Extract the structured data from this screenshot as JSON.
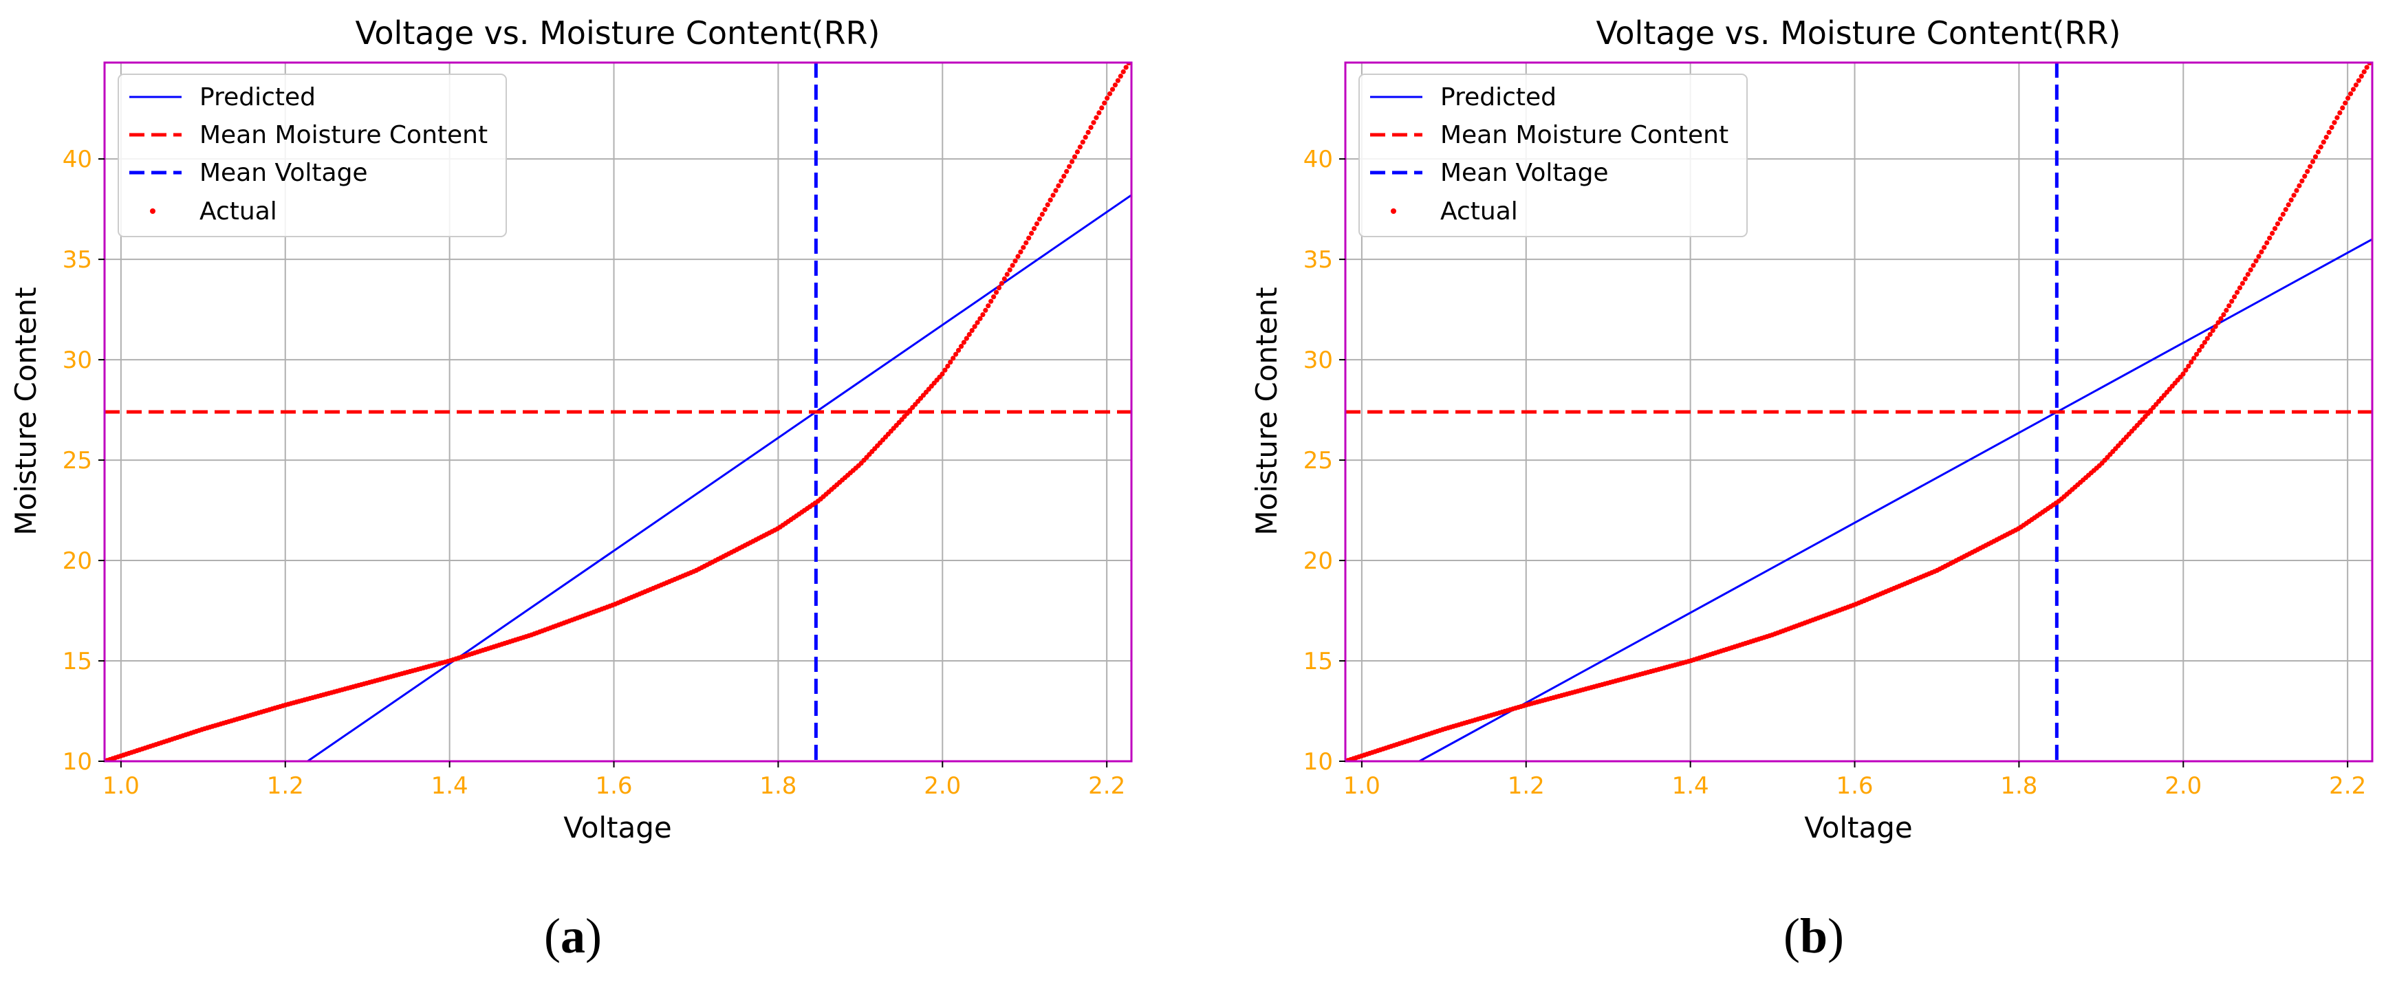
{
  "charts": [
    {
      "caption_letter": "a",
      "caption_open": "(",
      "caption_close": ")",
      "chart_data": {
        "type": "line",
        "title": "Voltage vs. Moisture Content(RR)",
        "xlabel": "Voltage",
        "ylabel": "Moisture Content",
        "xlim": [
          0.98,
          2.23
        ],
        "ylim": [
          10,
          44.8
        ],
        "xticks": [
          1.0,
          1.2,
          1.4,
          1.6,
          1.8,
          2.0,
          2.2
        ],
        "xtick_labels": [
          "1.0",
          "1.2",
          "1.4",
          "1.6",
          "1.8",
          "2.0",
          "2.2"
        ],
        "yticks": [
          10,
          15,
          20,
          25,
          30,
          35,
          40
        ],
        "ytick_labels": [
          "10",
          "15",
          "20",
          "25",
          "30",
          "35",
          "40"
        ],
        "grid": true,
        "legend_position": "top-left",
        "legend": [
          "Predicted",
          "Mean Moisture Content",
          "Mean Voltage",
          "Actual"
        ],
        "series": [
          {
            "name": "Predicted",
            "style": "solid-line",
            "color": "#0000ff",
            "x": [
              1.22,
              2.23
            ],
            "y": [
              9.8,
              38.2
            ]
          },
          {
            "name": "Mean Moisture Content",
            "style": "dashed-hline",
            "color": "#ff0000",
            "y": 27.4
          },
          {
            "name": "Mean Voltage",
            "style": "dashed-vline",
            "color": "#0000ff",
            "x": 1.846
          },
          {
            "name": "Actual",
            "style": "points",
            "color": "#ff0000",
            "x": [
              0.98,
              1.1,
              1.2,
              1.3,
              1.4,
              1.5,
              1.6,
              1.7,
              1.8,
              1.85,
              1.9,
              1.95,
              2.0,
              2.05,
              2.1,
              2.15,
              2.2,
              2.23
            ],
            "y": [
              10.0,
              11.6,
              12.8,
              13.9,
              15.0,
              16.3,
              17.8,
              19.5,
              21.6,
              23.0,
              24.8,
              27.0,
              29.3,
              32.3,
              35.7,
              39.3,
              43.0,
              45.0
            ]
          }
        ]
      }
    },
    {
      "caption_letter": "b",
      "caption_open": "(",
      "caption_close": ")",
      "chart_data": {
        "type": "line",
        "title": "Voltage vs. Moisture Content(RR)",
        "xlabel": "Voltage",
        "ylabel": "Moisture Content",
        "xlim": [
          0.98,
          2.23
        ],
        "ylim": [
          10,
          44.8
        ],
        "xticks": [
          1.0,
          1.2,
          1.4,
          1.6,
          1.8,
          2.0,
          2.2
        ],
        "xtick_labels": [
          "1.0",
          "1.2",
          "1.4",
          "1.6",
          "1.8",
          "2.0",
          "2.2"
        ],
        "yticks": [
          10,
          15,
          20,
          25,
          30,
          35,
          40
        ],
        "ytick_labels": [
          "10",
          "15",
          "20",
          "25",
          "30",
          "35",
          "40"
        ],
        "grid": true,
        "legend_position": "top-left",
        "legend": [
          "Predicted",
          "Mean Moisture Content",
          "Mean Voltage",
          "Actual"
        ],
        "series": [
          {
            "name": "Predicted",
            "style": "solid-line",
            "color": "#0000ff",
            "x": [
              1.07,
              2.23
            ],
            "y": [
              10.0,
              36.0
            ]
          },
          {
            "name": "Mean Moisture Content",
            "style": "dashed-hline",
            "color": "#ff0000",
            "y": 27.4
          },
          {
            "name": "Mean Voltage",
            "style": "dashed-vline",
            "color": "#0000ff",
            "x": 1.846
          },
          {
            "name": "Actual",
            "style": "points",
            "color": "#ff0000",
            "x": [
              0.98,
              1.1,
              1.2,
              1.3,
              1.4,
              1.5,
              1.6,
              1.7,
              1.8,
              1.85,
              1.9,
              1.95,
              2.0,
              2.05,
              2.1,
              2.15,
              2.2,
              2.23
            ],
            "y": [
              10.0,
              11.6,
              12.8,
              13.9,
              15.0,
              16.3,
              17.8,
              19.5,
              21.6,
              23.0,
              24.8,
              27.0,
              29.3,
              32.3,
              35.7,
              39.3,
              43.0,
              45.0
            ]
          }
        ]
      }
    }
  ],
  "colors": {
    "axes_frame": "#bf00bf",
    "tick_labels": "#ffa500",
    "grid": "#b0b0b0",
    "text": "#000000"
  }
}
